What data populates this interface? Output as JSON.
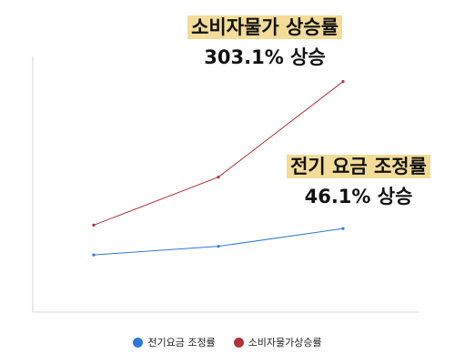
{
  "chart_data": {
    "type": "line",
    "title": "",
    "xlabel": "",
    "ylabel": "",
    "grid": false,
    "legend_placement": "bottom-center",
    "categories": [
      "",
      "",
      ""
    ],
    "series": [
      {
        "name": "전기요금 조정률",
        "color": "#2b7bd6",
        "values": [
          1.0,
          1.15,
          1.46
        ]
      },
      {
        "name": "소비자물가상승률",
        "color": "#b0323a",
        "values": [
          1.52,
          2.36,
          4.03
        ]
      }
    ],
    "ylim": [
      0,
      4.5
    ],
    "annotations": [
      {
        "label": "소비자물가 상승률",
        "value": "303.1% 상승",
        "series": "소비자물가상승률"
      },
      {
        "label": "전기 요금 조정률",
        "value": "46.1% 상승",
        "series": "전기요금 조정률"
      }
    ],
    "highlight_color": "#f3dc97",
    "axis_color": "#d6d6d6"
  }
}
